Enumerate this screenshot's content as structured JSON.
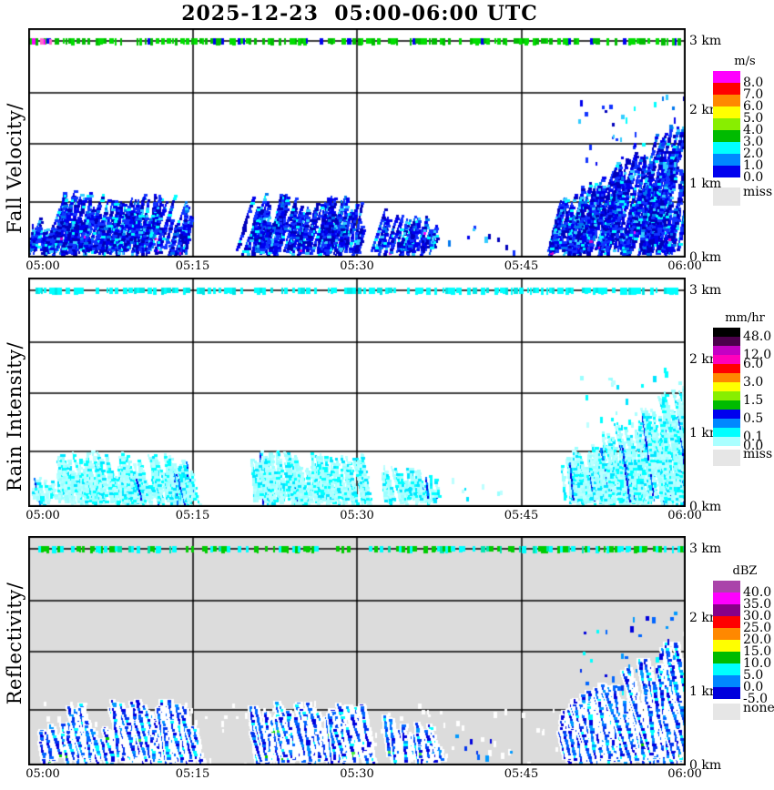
{
  "title": "2025-12-23  05:00-06:00 UTC",
  "chart_data": [
    {
      "type": "heatmap",
      "ylabel": "Fall Velocity/",
      "x_ticks": [
        "05:00",
        "05:15",
        "05:30",
        "05:45",
        "06:00"
      ],
      "y_labels_km": [
        "3 km",
        "2 km",
        "1 km",
        "0 km"
      ],
      "x_range_utc": [
        "05:00",
        "06:00"
      ],
      "y_range_km": [
        0,
        3
      ],
      "legend": {
        "title": "m/s",
        "band_colors": [
          "#FF00FF",
          "#FF0000",
          "#FF8800",
          "#FFFF00",
          "#88EE00",
          "#00BB00",
          "#00FFFF",
          "#0088FF",
          "#0000EE"
        ],
        "boundary_labels": [
          {
            "after_band": 1,
            "text": "8.0"
          },
          {
            "after_band": 2,
            "text": "7.0"
          },
          {
            "after_band": 3,
            "text": "6.0"
          },
          {
            "after_band": 4,
            "text": "5.0"
          },
          {
            "after_band": 5,
            "text": "4.0"
          },
          {
            "after_band": 6,
            "text": "3.0"
          },
          {
            "after_band": 7,
            "text": "2.0"
          },
          {
            "after_band": 8,
            "text": "1.0"
          },
          {
            "after_band": 9,
            "text": "0.0"
          }
        ],
        "missing": {
          "label": "miss",
          "color": "#E6E6E6"
        }
      },
      "palette": {
        "bg": "#FFFFFF",
        "body": [
          "#0000EE",
          "#0000BB",
          "#1133FF"
        ],
        "accent": [
          "#0077EE",
          "#00FFFF",
          "#33CCFF"
        ],
        "rare": [
          "#FF00FF",
          "#CC00CC"
        ],
        "accent_p": 0.22,
        "rare_p": 0.012,
        "slant": -0.8
      },
      "top_strip": {
        "height_km": 3,
        "colors": [
          "#00BB00",
          "#00DD00",
          "#0000EE"
        ],
        "weights": [
          0.55,
          0.37,
          0.08
        ],
        "density": 0.6,
        "edge_colors": [
          "#FF00FF",
          "#FF66CC"
        ]
      },
      "echo_regions": [
        {
          "t0": 0.2,
          "t1": 2.4,
          "top_min": 0.25,
          "top_max_start": 0.55,
          "top_max_end": 0.6,
          "density": 1.3
        },
        {
          "t0": 2.6,
          "t1": 14.9,
          "top_min": 0.35,
          "top_max_start": 0.95,
          "top_max_end": 0.9,
          "density": 1.9
        },
        {
          "t0": 20.2,
          "t1": 30.6,
          "top_min": 0.35,
          "top_max_start": 0.9,
          "top_max_end": 0.85,
          "density": 1.9
        },
        {
          "t0": 32.2,
          "t1": 37.3,
          "top_min": 0.25,
          "top_max_start": 0.7,
          "top_max_end": 0.55,
          "density": 1.4
        },
        {
          "t0": 48.4,
          "t1": 60.0,
          "top_min": 0.45,
          "top_max_start": 0.8,
          "top_max_end": 2.0,
          "density": 2.2
        }
      ],
      "specks": [
        {
          "t0": 37.8,
          "t1": 44.5,
          "h_min": 0.1,
          "h_max": 0.5,
          "count": 9
        },
        {
          "t0": 50.0,
          "t1": 60.0,
          "h_min": 1.0,
          "h_max": 2.3,
          "count": 50
        }
      ]
    },
    {
      "type": "heatmap",
      "ylabel": "Rain Intensity/",
      "x_ticks": [
        "05:00",
        "05:15",
        "05:30",
        "05:45",
        "06:00"
      ],
      "y_labels_km": [
        "3 km",
        "2 km",
        "1 km",
        "0 km"
      ],
      "x_range_utc": [
        "05:00",
        "06:00"
      ],
      "y_range_km": [
        0,
        3
      ],
      "legend": {
        "title": "mm/hr",
        "band_colors": [
          "#000000",
          "#4C004C",
          "#C400C4",
          "#FF00BB",
          "#FF0000",
          "#FF8800",
          "#FFFF00",
          "#88EE00",
          "#00BB00",
          "#0000EE",
          "#0088FF",
          "#00FFFF",
          "#AAFFFF"
        ],
        "boundary_labels": [
          {
            "after_band": 1,
            "text": "48.0"
          },
          {
            "after_band": 3,
            "text": "12.0"
          },
          {
            "after_band": 4,
            "text": "6.0"
          },
          {
            "after_band": 6,
            "text": "3.0"
          },
          {
            "after_band": 8,
            "text": "1.5"
          },
          {
            "after_band": 10,
            "text": "0.5"
          },
          {
            "after_band": 12,
            "text": "0.1"
          },
          {
            "after_band": 13,
            "text": "0.0"
          }
        ],
        "missing": {
          "label": "miss",
          "color": "#E6E6E6"
        }
      },
      "palette": {
        "bg": "#FFFFFF",
        "body": [
          "#AAFFFF",
          "#BBFFFF",
          "#99FFFF"
        ],
        "accent": [
          "#00FFFF",
          "#00E5FF"
        ],
        "rare": [
          "#0077FF",
          "#0000DD"
        ],
        "accent_p": 0.3,
        "rare_p": 0.06,
        "slant": 0.5
      },
      "top_strip": {
        "height_km": 3,
        "colors": [
          "#00FFFF",
          "#00E5E5"
        ],
        "weights": [
          0.72,
          0.28
        ],
        "density": 0.55,
        "edge_colors": []
      },
      "echo_regions": [
        {
          "t0": 0.2,
          "t1": 2.4,
          "top_min": 0.2,
          "top_max_start": 0.45,
          "top_max_end": 0.5,
          "density": 1.5
        },
        {
          "t0": 2.6,
          "t1": 14.9,
          "top_min": 0.3,
          "top_max_start": 0.8,
          "top_max_end": 0.75,
          "density": 2.4
        },
        {
          "t0": 20.2,
          "t1": 30.6,
          "top_min": 0.3,
          "top_max_start": 0.8,
          "top_max_end": 0.75,
          "density": 2.4
        },
        {
          "t0": 32.2,
          "t1": 37.3,
          "top_min": 0.2,
          "top_max_start": 0.6,
          "top_max_end": 0.5,
          "density": 1.6
        },
        {
          "t0": 48.4,
          "t1": 60.0,
          "top_min": 0.4,
          "top_max_start": 0.7,
          "top_max_end": 1.8,
          "density": 2.6
        }
      ],
      "specks": [
        {
          "t0": 37.8,
          "t1": 44.5,
          "h_min": 0.1,
          "h_max": 0.4,
          "count": 7
        },
        {
          "t0": 50.0,
          "t1": 60.0,
          "h_min": 0.9,
          "h_max": 2.0,
          "count": 30
        }
      ]
    },
    {
      "type": "heatmap",
      "ylabel": "Reflectivity/",
      "x_ticks": [
        "05:00",
        "05:15",
        "05:30",
        "05:45",
        "06:00"
      ],
      "y_labels_km": [
        "3 km",
        "2 km",
        "1 km",
        "0 km"
      ],
      "x_range_utc": [
        "05:00",
        "06:00"
      ],
      "y_range_km": [
        0,
        3
      ],
      "legend": {
        "title": "dBZ",
        "band_colors": [
          "#AA44AA",
          "#FF00FF",
          "#880088",
          "#FF0000",
          "#FF8800",
          "#FFFF00",
          "#00BB00",
          "#00FFFF",
          "#0088FF",
          "#0000DD"
        ],
        "boundary_labels": [
          {
            "after_band": 1,
            "text": "40.0"
          },
          {
            "after_band": 2,
            "text": "35.0"
          },
          {
            "after_band": 3,
            "text": "30.0"
          },
          {
            "after_band": 4,
            "text": "25.0"
          },
          {
            "after_band": 5,
            "text": "20.0"
          },
          {
            "after_band": 6,
            "text": "15.0"
          },
          {
            "after_band": 7,
            "text": "10.0"
          },
          {
            "after_band": 8,
            "text": "5.0"
          },
          {
            "after_band": 9,
            "text": "0.0"
          },
          {
            "after_band": 10,
            "text": "-5.0"
          }
        ],
        "missing": {
          "label": "none",
          "color": "#E6E6E6"
        }
      },
      "palette": {
        "bg": "#DCDCDC",
        "halo": "#FFFFFF",
        "body": [
          "#0000DD",
          "#0033EE",
          "#0066FF"
        ],
        "accent": [
          "#00FFFF",
          "#0099FF"
        ],
        "rare": [
          "#00CC00",
          "#44EE44"
        ],
        "accent_p": 0.28,
        "rare_p": 0.02,
        "slant": 0.7
      },
      "top_strip": {
        "height_km": 3,
        "colors": [
          "#00CC00",
          "#00FFFF",
          "#00E5B0"
        ],
        "weights": [
          0.45,
          0.45,
          0.1
        ],
        "density": 0.6,
        "edge_colors": []
      },
      "echo_regions": [
        {
          "t0": 0.2,
          "t1": 2.4,
          "top_min": 0.25,
          "top_max_start": 0.55,
          "top_max_end": 0.6,
          "density": 1.1
        },
        {
          "t0": 2.6,
          "t1": 14.9,
          "top_min": 0.35,
          "top_max_start": 0.95,
          "top_max_end": 0.9,
          "density": 1.6
        },
        {
          "t0": 20.2,
          "t1": 30.6,
          "top_min": 0.35,
          "top_max_start": 0.9,
          "top_max_end": 0.85,
          "density": 1.6
        },
        {
          "t0": 32.2,
          "t1": 37.3,
          "top_min": 0.25,
          "top_max_start": 0.7,
          "top_max_end": 0.55,
          "density": 1.2
        },
        {
          "t0": 48.4,
          "t1": 60.0,
          "top_min": 0.45,
          "top_max_start": 0.8,
          "top_max_end": 1.9,
          "density": 1.9
        }
      ],
      "specks": [
        {
          "t0": 1.0,
          "t1": 59.0,
          "h_min": 0.02,
          "h_max": 0.9,
          "count": 130,
          "use": "halo"
        },
        {
          "t0": 37.8,
          "t1": 44.5,
          "h_min": 0.1,
          "h_max": 0.45,
          "count": 8
        },
        {
          "t0": 50.0,
          "t1": 60.0,
          "h_min": 1.0,
          "h_max": 2.2,
          "count": 40
        }
      ]
    }
  ]
}
